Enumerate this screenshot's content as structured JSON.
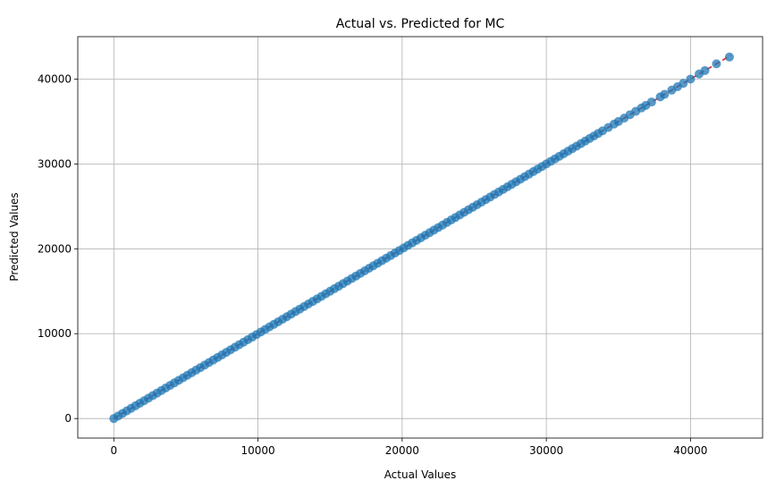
{
  "chart_data": {
    "type": "scatter",
    "title": "Actual vs. Predicted for MC",
    "xlabel": "Actual Values",
    "ylabel": "Predicted Values",
    "xlim": [
      -2500,
      45000
    ],
    "ylim": [
      -2300,
      45000
    ],
    "xticks": [
      0,
      10000,
      20000,
      30000,
      40000
    ],
    "yticks": [
      0,
      10000,
      20000,
      30000,
      40000
    ],
    "xtick_labels": [
      "0",
      "10000",
      "20000",
      "30000",
      "40000"
    ],
    "ytick_labels": [
      "0",
      "10000",
      "20000",
      "30000",
      "40000"
    ],
    "grid": true,
    "point_color": "#1f77b4",
    "reference_line": {
      "style": "dashed",
      "color": "#d62728",
      "from": [
        0,
        0
      ],
      "to": [
        42800,
        42800
      ]
    },
    "points": {
      "x": [
        0,
        300,
        600,
        900,
        1200,
        1500,
        1800,
        2100,
        2400,
        2700,
        3000,
        3300,
        3600,
        3900,
        4200,
        4500,
        4800,
        5100,
        5400,
        5700,
        6000,
        6300,
        6600,
        6900,
        7200,
        7500,
        7800,
        8100,
        8400,
        8700,
        9000,
        9300,
        9600,
        9900,
        10200,
        10500,
        10800,
        11100,
        11400,
        11700,
        12000,
        12300,
        12600,
        12900,
        13200,
        13500,
        13800,
        14100,
        14400,
        14700,
        15000,
        15300,
        15600,
        15900,
        16200,
        16500,
        16800,
        17100,
        17400,
        17700,
        18000,
        18300,
        18600,
        18900,
        19200,
        19500,
        19800,
        20100,
        20400,
        20700,
        21000,
        21300,
        21600,
        21900,
        22200,
        22500,
        22800,
        23100,
        23400,
        23700,
        24000,
        24300,
        24600,
        24900,
        25200,
        25500,
        25800,
        26100,
        26400,
        26700,
        27000,
        27300,
        27600,
        27900,
        28200,
        28500,
        28800,
        29100,
        29400,
        29700,
        30000,
        30300,
        30600,
        30900,
        31200,
        31500,
        31800,
        32100,
        32400,
        32700,
        33000,
        33300,
        33600,
        33900,
        34300,
        34700,
        35000,
        35400,
        35800,
        36200,
        36600,
        36900,
        37300,
        37900,
        38200,
        38700,
        39100,
        39500,
        40000,
        40600,
        41000,
        41800,
        42700
      ],
      "y": [
        0,
        300,
        600,
        900,
        1200,
        1500,
        1800,
        2100,
        2400,
        2700,
        3000,
        3300,
        3600,
        3900,
        4200,
        4500,
        4800,
        5100,
        5400,
        5700,
        6000,
        6300,
        6600,
        6900,
        7200,
        7500,
        7800,
        8100,
        8400,
        8700,
        9000,
        9300,
        9600,
        9900,
        10200,
        10500,
        10800,
        11100,
        11400,
        11700,
        12000,
        12300,
        12600,
        12900,
        13200,
        13500,
        13800,
        14100,
        14400,
        14700,
        15000,
        15300,
        15600,
        15900,
        16200,
        16500,
        16800,
        17100,
        17400,
        17700,
        18000,
        18300,
        18600,
        18900,
        19200,
        19500,
        19800,
        20100,
        20400,
        20700,
        21000,
        21300,
        21600,
        21900,
        22200,
        22500,
        22800,
        23100,
        23400,
        23700,
        24000,
        24300,
        24600,
        24900,
        25200,
        25500,
        25800,
        26100,
        26400,
        26700,
        27000,
        27300,
        27600,
        27900,
        28200,
        28500,
        28800,
        29100,
        29400,
        29700,
        30000,
        30300,
        30600,
        30900,
        31200,
        31500,
        31800,
        32100,
        32400,
        32700,
        33000,
        33300,
        33600,
        33900,
        34300,
        34700,
        35000,
        35400,
        35800,
        36200,
        36600,
        36900,
        37300,
        37900,
        38200,
        38700,
        39100,
        39500,
        40000,
        40600,
        41000,
        41800,
        42600
      ]
    }
  }
}
